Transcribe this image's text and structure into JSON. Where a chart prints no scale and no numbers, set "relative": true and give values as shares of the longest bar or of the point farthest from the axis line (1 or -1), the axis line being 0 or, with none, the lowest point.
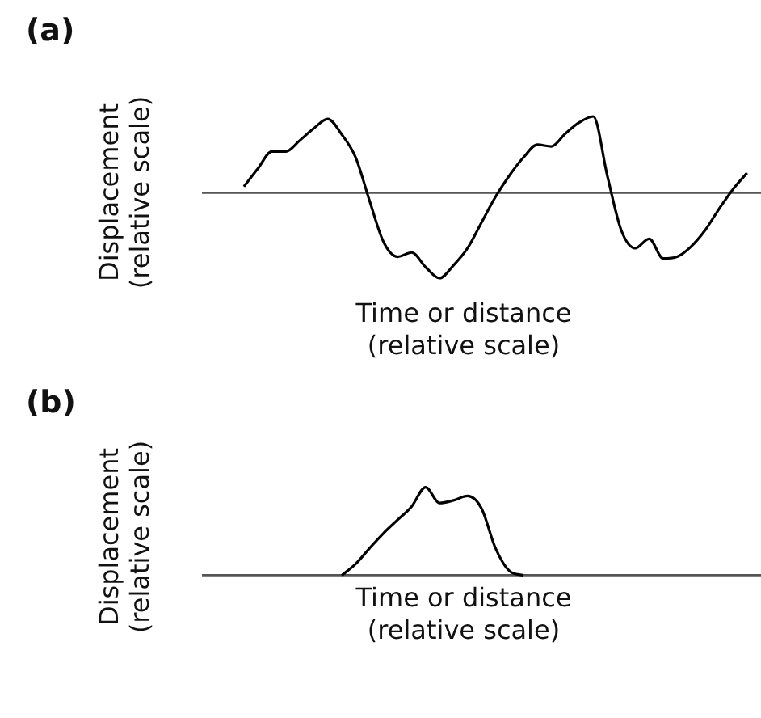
{
  "chart_data": [
    {
      "type": "line",
      "title": "(a)",
      "xlabel": "Time or distance (relative scale)",
      "ylabel": "Displacement (relative scale)",
      "relative": true,
      "color": "#000000",
      "categories": [
        null,
        null,
        null,
        null,
        null,
        null,
        null,
        null,
        null,
        null,
        null,
        null,
        null,
        null,
        null,
        null,
        null,
        null,
        null,
        null,
        null,
        null,
        null,
        null,
        null,
        null,
        null,
        null,
        null,
        null,
        null,
        null,
        null,
        null,
        null,
        null,
        null,
        null,
        null,
        null,
        null
      ],
      "values": [
        null,
        null,
        null,
        0.07,
        0.28,
        0.48,
        0.48,
        0.61,
        0.75,
        0.86,
        0.68,
        0.41,
        -0.1,
        -0.58,
        -0.75,
        -0.7,
        -0.87,
        -1,
        -0.85,
        -0.65,
        -0.35,
        -0.05,
        0.2,
        0.41,
        0.56,
        0.54,
        0.69,
        0.82,
        0.89,
        0.2,
        -0.44,
        -0.65,
        -0.54,
        -0.77,
        -0.75,
        -0.63,
        -0.44,
        -0.19,
        0.04,
        0.23,
        null
      ]
    },
    {
      "type": "line",
      "title": "(b)",
      "xlabel": "Time or distance (relative scale)",
      "ylabel": "Displacement (relative scale)",
      "relative": true,
      "color": "#000000",
      "categories": [
        null,
        null,
        null,
        null,
        null,
        null,
        null,
        null,
        null,
        null,
        null,
        null,
        null,
        null,
        null,
        null,
        null,
        null,
        null,
        null,
        null,
        null,
        null,
        null,
        null,
        null,
        null,
        null,
        null,
        null,
        null,
        null,
        null,
        null,
        null,
        null,
        null,
        null,
        null,
        null,
        null
      ],
      "values": [
        null,
        null,
        null,
        null,
        null,
        null,
        null,
        null,
        null,
        null,
        0,
        0.13,
        0.31,
        0.48,
        0.63,
        0.78,
        1,
        0.82,
        0.85,
        0.9,
        0.76,
        0.31,
        0.05,
        0,
        null,
        null,
        null,
        null,
        null,
        null,
        null,
        null,
        null,
        null,
        null,
        null,
        null,
        null,
        null,
        null,
        null
      ]
    }
  ]
}
